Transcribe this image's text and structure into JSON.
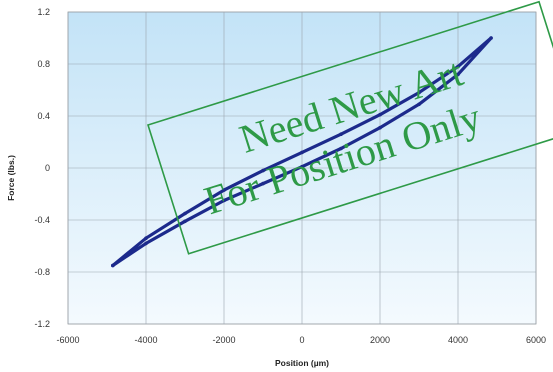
{
  "chart_data": {
    "type": "line",
    "title": "",
    "xlabel": "Position (µm)",
    "ylabel": "Force (lbs.)",
    "xlim": [
      -6000,
      6000
    ],
    "ylim": [
      -1.2,
      1.2
    ],
    "xticks": [
      -6000,
      -4000,
      -2000,
      0,
      2000,
      4000,
      6000
    ],
    "yticks": [
      1.2,
      0.8,
      0.4,
      0,
      -0.4,
      -0.8,
      -1.2
    ],
    "xtick_labels": [
      "-6000",
      "-4000",
      "-2000",
      "0",
      "2000",
      "4000",
      "6000"
    ],
    "ytick_labels": [
      "1.2",
      "0.8",
      "0.4",
      "0",
      "-0.4",
      "-0.8",
      "-1.2"
    ],
    "grid": true,
    "series": [
      {
        "color": "#1c2a8c",
        "x": [
          -4850,
          -4000,
          -3000,
          -2000,
          -1000,
          0,
          1000,
          2000,
          3000,
          4000,
          4850,
          4000,
          3000,
          2000,
          1000,
          0,
          -1000,
          -2000,
          -3000,
          -4000,
          -4850
        ],
        "y": [
          -0.75,
          -0.54,
          -0.35,
          -0.17,
          -0.02,
          0.12,
          0.26,
          0.41,
          0.58,
          0.78,
          1.0,
          0.72,
          0.49,
          0.31,
          0.15,
          0.01,
          -0.12,
          -0.25,
          -0.41,
          -0.58,
          -0.75
        ]
      }
    ]
  },
  "watermark": {
    "line1": "Need New Art",
    "line2": "For Position Only",
    "color": "#2e9a47"
  }
}
